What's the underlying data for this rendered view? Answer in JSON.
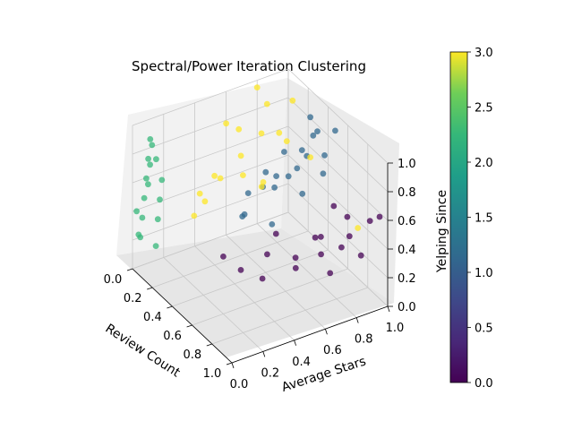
{
  "chart_data": {
    "type": "scatter",
    "projection": "3d",
    "title": "Spectral/Power Iteration Clustering",
    "xlabel": "Review Count",
    "ylabel": "Average Stars",
    "zlabel": "Yelping Since",
    "xlim": [
      0,
      1
    ],
    "ylim": [
      0,
      1
    ],
    "zlim": [
      0,
      1
    ],
    "xticks": [
      "0.0",
      "0.2",
      "0.4",
      "0.6",
      "0.8",
      "1.0"
    ],
    "yticks": [
      "0.0",
      "0.2",
      "0.4",
      "0.6",
      "0.8",
      "1.0"
    ],
    "zticks": [
      "0.0",
      "0.2",
      "0.4",
      "0.6",
      "0.8",
      "1.0"
    ],
    "grid": true,
    "colormap": "viridis",
    "colorbar": {
      "range": [
        0,
        3
      ],
      "ticks": [
        "0.0",
        "0.5",
        "1.0",
        "1.5",
        "2.0",
        "2.5",
        "3.0"
      ]
    },
    "clusters": [
      {
        "label": 0,
        "color": "#440154",
        "points": [
          [
            0.62,
            0.3,
            0.28
          ],
          [
            0.65,
            0.45,
            0.35
          ],
          [
            0.7,
            0.6,
            0.3
          ],
          [
            0.72,
            0.75,
            0.4
          ],
          [
            0.75,
            0.9,
            0.5
          ],
          [
            0.8,
            0.7,
            0.35
          ],
          [
            0.85,
            0.85,
            0.45
          ],
          [
            0.9,
            0.95,
            0.55
          ],
          [
            0.68,
            0.4,
            0.22
          ],
          [
            0.78,
            0.55,
            0.3
          ],
          [
            0.88,
            0.78,
            0.42
          ],
          [
            0.95,
            0.98,
            0.6
          ],
          [
            0.6,
            0.2,
            0.4
          ],
          [
            0.82,
            0.65,
            0.5
          ],
          [
            0.74,
            0.82,
            0.6
          ],
          [
            0.92,
            0.88,
            0.35
          ],
          [
            0.66,
            0.5,
            0.48
          ],
          [
            0.86,
            0.72,
            0.25
          ]
        ]
      },
      {
        "label": 1,
        "color": "#31688e",
        "points": [
          [
            0.5,
            0.4,
            0.55
          ],
          [
            0.45,
            0.55,
            0.65
          ],
          [
            0.55,
            0.65,
            0.75
          ],
          [
            0.5,
            0.8,
            0.8
          ],
          [
            0.4,
            0.6,
            0.7
          ],
          [
            0.6,
            0.85,
            0.85
          ],
          [
            0.45,
            0.9,
            0.9
          ],
          [
            0.35,
            0.7,
            0.6
          ],
          [
            0.55,
            0.95,
            0.95
          ],
          [
            0.48,
            0.75,
            0.72
          ],
          [
            0.38,
            0.5,
            0.58
          ],
          [
            0.52,
            0.58,
            0.68
          ],
          [
            0.42,
            0.82,
            0.78
          ],
          [
            0.58,
            0.72,
            0.62
          ],
          [
            0.3,
            0.95,
            0.88
          ],
          [
            0.25,
            1.0,
            0.7
          ],
          [
            0.35,
            1.0,
            0.5
          ],
          [
            0.62,
            0.5,
            0.52
          ],
          [
            0.46,
            0.68,
            0.85
          ],
          [
            0.4,
            0.45,
            0.45
          ]
        ]
      },
      {
        "label": 2,
        "color": "#35b779",
        "points": [
          [
            0.0,
            0.05,
            0.2
          ],
          [
            0.02,
            0.05,
            0.35
          ],
          [
            0.04,
            0.05,
            0.5
          ],
          [
            0.06,
            0.05,
            0.65
          ],
          [
            0.08,
            0.05,
            0.8
          ],
          [
            0.1,
            0.05,
            0.95
          ],
          [
            0.0,
            0.15,
            0.1
          ],
          [
            0.02,
            0.15,
            0.3
          ],
          [
            0.04,
            0.15,
            0.45
          ],
          [
            0.06,
            0.15,
            0.6
          ],
          [
            0.0,
            0.1,
            0.55
          ],
          [
            0.02,
            0.1,
            0.7
          ],
          [
            0.04,
            0.1,
            0.85
          ],
          [
            0.01,
            0.02,
            0.4
          ],
          [
            0.03,
            0.02,
            0.25
          ],
          [
            0.05,
            0.12,
            0.75
          ]
        ]
      },
      {
        "label": 3,
        "color": "#fde725",
        "points": [
          [
            0.1,
            0.5,
            0.5
          ],
          [
            0.15,
            0.6,
            0.65
          ],
          [
            0.2,
            0.7,
            0.8
          ],
          [
            0.1,
            0.8,
            0.9
          ],
          [
            0.05,
            0.4,
            0.4
          ],
          [
            0.2,
            0.9,
            0.95
          ],
          [
            0.15,
            0.3,
            0.35
          ],
          [
            0.25,
            0.55,
            0.6
          ],
          [
            0.3,
            0.75,
            0.85
          ],
          [
            0.05,
            0.65,
            0.75
          ],
          [
            0.12,
            0.45,
            0.55
          ],
          [
            0.22,
            0.85,
            0.7
          ],
          [
            0.18,
            0.35,
            0.45
          ],
          [
            0.08,
            0.55,
            0.85
          ],
          [
            0.28,
            0.65,
            0.5
          ],
          [
            0.0,
            0.8,
            0.95
          ],
          [
            0.3,
            0.95,
            0.6
          ],
          [
            0.14,
            0.75,
            0.4
          ],
          [
            0.7,
            1.0,
            0.35
          ]
        ]
      }
    ]
  }
}
